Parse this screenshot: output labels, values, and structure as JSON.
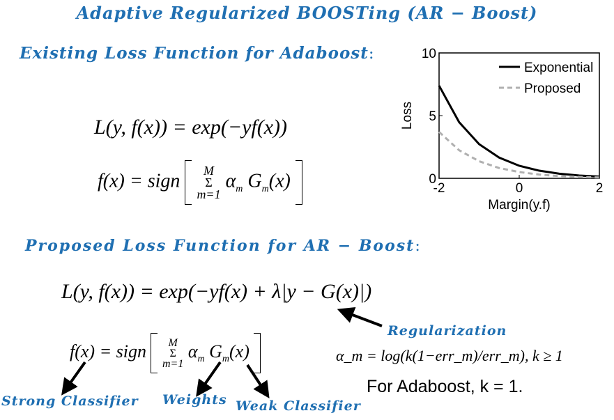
{
  "title": "Adaptive Regularized BOOSTing (AR − Boost)",
  "existing_heading": "Existing Loss Function for Adaboost",
  "proposed_heading": "Proposed  Loss  Function  for AR − Boost",
  "eq_loss_existing": "L(y, f(x)) = exp(−yf(x))",
  "eq_loss_proposed": "L(y, f(x)) = exp(−yf(x) + λ|y − G(x)|)",
  "eq_f_prefix": "f(x) = sign",
  "eq_f_sum_top": "M",
  "eq_f_sum_sym": "Σ",
  "eq_f_sum_bottom": "m=1",
  "eq_f_body": "α",
  "eq_f_body_sub": "m",
  "eq_f_body2": "G",
  "eq_f_body2_sub": "m",
  "eq_f_body2_arg": "(x)",
  "eq_alpha": "α_m = log(k(1−err_m)/err_m), k ≥ 1",
  "labels": {
    "regularization": "Regularization",
    "strong": "Strong Classifier",
    "weights": "Weights",
    "weak": "Weak Classifier"
  },
  "note": "For Adaboost, k = 1.",
  "chart_data": {
    "type": "line",
    "xlabel": "Margin(y.f)",
    "ylabel": "Loss",
    "xlim": [
      -2,
      2
    ],
    "ylim": [
      0,
      10
    ],
    "xticks": [
      "-2",
      "0",
      "2"
    ],
    "yticks": [
      "0",
      "5",
      "10"
    ],
    "legend_position": "top-right",
    "x": [
      -2,
      -1.5,
      -1,
      -0.5,
      0,
      0.5,
      1,
      1.5,
      2
    ],
    "series": [
      {
        "name": "Exponential",
        "color": "#000000",
        "style": "solid",
        "values": [
          7.39,
          4.48,
          2.72,
          1.65,
          1.0,
          0.61,
          0.37,
          0.22,
          0.14
        ]
      },
      {
        "name": "Proposed",
        "color": "#b0b0b0",
        "style": "dashed",
        "values": [
          3.7,
          2.24,
          1.36,
          0.82,
          0.5,
          0.3,
          0.18,
          0.11,
          0.07
        ]
      }
    ]
  }
}
